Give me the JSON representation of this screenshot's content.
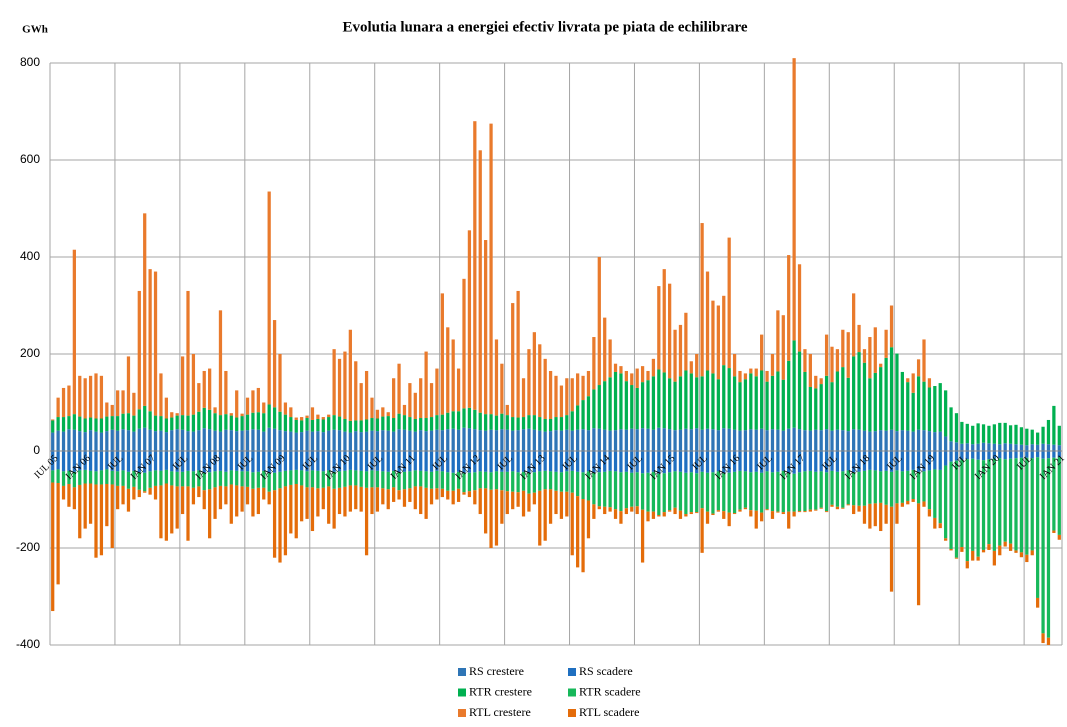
{
  "chart_data": {
    "type": "bar",
    "stacked": true,
    "title": "Evolutia lunara a energiei efectiv livrata pe piata de echilibrare",
    "y_label": "GWh",
    "ylim": [
      -400,
      800
    ],
    "yticks": [
      -400,
      -200,
      0,
      200,
      400,
      600,
      800
    ],
    "grid": true,
    "legend": "bottom",
    "categories": [
      "IUL 05",
      null,
      null,
      null,
      null,
      null,
      "IAN 06",
      null,
      null,
      null,
      null,
      null,
      "IUL",
      null,
      null,
      null,
      null,
      null,
      "IAN 07",
      null,
      null,
      null,
      null,
      null,
      "IUL",
      null,
      null,
      null,
      null,
      null,
      "IAN 08",
      null,
      null,
      null,
      null,
      null,
      "IUL",
      null,
      null,
      null,
      null,
      null,
      "IAN 09",
      null,
      null,
      null,
      null,
      null,
      "IUL",
      null,
      null,
      null,
      null,
      null,
      "IAN 10",
      null,
      null,
      null,
      null,
      null,
      "IUL",
      null,
      null,
      null,
      null,
      null,
      "IAN 11",
      null,
      null,
      null,
      null,
      null,
      "IUL",
      null,
      null,
      null,
      null,
      null,
      "IAN 12",
      null,
      null,
      null,
      null,
      null,
      "IUL",
      null,
      null,
      null,
      null,
      null,
      "IAN 13",
      null,
      null,
      null,
      null,
      null,
      "IUL",
      null,
      null,
      null,
      null,
      null,
      "IAN 14",
      null,
      null,
      null,
      null,
      null,
      "IUL",
      null,
      null,
      null,
      null,
      null,
      "IAN 15",
      null,
      null,
      null,
      null,
      null,
      "IUL",
      null,
      null,
      null,
      null,
      null,
      "IAN 16",
      null,
      null,
      null,
      null,
      null,
      "IUL",
      null,
      null,
      null,
      null,
      null,
      "IAN 17",
      null,
      null,
      null,
      null,
      null,
      "IUL",
      null,
      null,
      null,
      null,
      null,
      "IAN 18",
      null,
      null,
      null,
      null,
      null,
      "IUL",
      null,
      null,
      null,
      null,
      null,
      "IAN 19",
      null,
      null,
      null,
      null,
      null,
      "IUL",
      null,
      null,
      null,
      null,
      null,
      "IAN 20",
      null,
      null,
      null,
      null,
      null,
      "IUL",
      null,
      null,
      null,
      null,
      null,
      "IAN 21"
    ],
    "series": [
      {
        "name": "RS crestere",
        "color": "#2e75b6",
        "values": [
          38,
          42,
          40,
          45,
          44,
          41,
          39,
          43,
          40,
          38,
          41,
          44,
          42,
          45,
          43,
          40,
          46,
          48,
          44,
          41,
          42,
          39,
          43,
          45,
          44,
          41,
          40,
          43,
          47,
          45,
          42,
          40,
          44,
          43,
          41,
          42,
          43,
          45,
          44,
          40,
          48,
          46,
          43,
          41,
          40,
          38,
          39,
          42,
          40,
          41,
          39,
          42,
          44,
          43,
          40,
          38,
          41,
          39,
          40,
          42,
          41,
          43,
          42,
          40,
          45,
          44,
          42,
          40,
          43,
          41,
          42,
          44,
          43,
          45,
          46,
          44,
          48,
          47,
          45,
          43,
          42,
          44,
          43,
          45,
          44,
          42,
          43,
          45,
          46,
          44,
          42,
          40,
          41,
          43,
          42,
          44,
          42,
          44,
          45,
          43,
          47,
          46,
          44,
          42,
          43,
          45,
          44,
          46,
          45,
          47,
          46,
          44,
          48,
          47,
          45,
          43,
          44,
          46,
          45,
          47,
          44,
          46,
          45,
          43,
          47,
          46,
          44,
          42,
          43,
          45,
          44,
          46,
          43,
          45,
          44,
          42,
          46,
          48,
          45,
          43,
          42,
          44,
          43,
          45,
          42,
          44,
          43,
          41,
          45,
          44,
          42,
          40,
          41,
          43,
          42,
          44,
          41,
          43,
          42,
          40,
          44,
          43,
          41,
          39,
          40,
          30,
          20,
          18,
          15,
          16,
          14,
          15,
          17,
          16,
          15,
          14,
          16,
          15,
          14,
          13,
          12,
          14,
          13,
          15,
          14,
          13,
          12
        ]
      },
      {
        "name": "RS scadere",
        "color": "#1f6fc0",
        "values": [
          -40,
          -38,
          -42,
          -41,
          -43,
          -40,
          -39,
          -41,
          -42,
          -40,
          -38,
          -41,
          -42,
          -40,
          -43,
          -41,
          -44,
          -45,
          -42,
          -40,
          -41,
          -39,
          -42,
          -43,
          -43,
          -41,
          -42,
          -40,
          -45,
          -44,
          -42,
          -41,
          -43,
          -40,
          -41,
          -42,
          -42,
          -44,
          -43,
          -41,
          -46,
          -45,
          -43,
          -41,
          -40,
          -39,
          -40,
          -42,
          -40,
          -41,
          -42,
          -40,
          -43,
          -42,
          -41,
          -39,
          -40,
          -41,
          -42,
          -40,
          -41,
          -42,
          -43,
          -41,
          -44,
          -43,
          -42,
          -40,
          -41,
          -42,
          -43,
          -41,
          -42,
          -44,
          -45,
          -43,
          -46,
          -45,
          -44,
          -42,
          -43,
          -44,
          -42,
          -43,
          -43,
          -42,
          -44,
          -43,
          -45,
          -44,
          -42,
          -41,
          -42,
          -43,
          -44,
          -42,
          -41,
          -43,
          -44,
          -42,
          -45,
          -44,
          -43,
          -41,
          -42,
          -44,
          -43,
          -45,
          -44,
          -46,
          -45,
          -43,
          -47,
          -46,
          -44,
          -42,
          -43,
          -45,
          -44,
          -46,
          -43,
          -45,
          -44,
          -42,
          -46,
          -45,
          -43,
          -41,
          -42,
          -44,
          -43,
          -45,
          -42,
          -44,
          -43,
          -41,
          -45,
          -47,
          -44,
          -42,
          -41,
          -43,
          -42,
          -44,
          -41,
          -43,
          -42,
          -40,
          -44,
          -43,
          -41,
          -39,
          -40,
          -42,
          -41,
          -43,
          -40,
          -42,
          -41,
          -39,
          -43,
          -42,
          -40,
          -38,
          -39,
          -30,
          -22,
          -20,
          -18,
          -17,
          -16,
          -18,
          -19,
          -17,
          -16,
          -15,
          -17,
          -16,
          -15,
          -14,
          -14,
          -15,
          -13,
          -16,
          -15,
          -14,
          -13
        ]
      },
      {
        "name": "RTR crestere",
        "color": "#00b050",
        "values": [
          25,
          28,
          30,
          27,
          32,
          30,
          28,
          26,
          27,
          29,
          30,
          28,
          30,
          32,
          35,
          33,
          40,
          45,
          38,
          32,
          30,
          28,
          26,
          28,
          30,
          32,
          35,
          38,
          42,
          40,
          36,
          34,
          32,
          30,
          28,
          30,
          32,
          34,
          36,
          38,
          48,
          44,
          38,
          34,
          30,
          26,
          24,
          26,
          24,
          25,
          26,
          28,
          30,
          28,
          26,
          24,
          22,
          24,
          25,
          26,
          26,
          28,
          30,
          28,
          32,
          30,
          28,
          26,
          25,
          27,
          28,
          30,
          32,
          34,
          36,
          38,
          40,
          42,
          40,
          36,
          34,
          32,
          30,
          32,
          30,
          28,
          26,
          25,
          28,
          30,
          28,
          26,
          25,
          27,
          28,
          30,
          40,
          50,
          60,
          70,
          80,
          90,
          100,
          110,
          120,
          115,
          100,
          90,
          85,
          95,
          100,
          110,
          120,
          115,
          105,
          100,
          110,
          120,
          115,
          105,
          110,
          120,
          115,
          105,
          130,
          125,
          110,
          100,
          105,
          115,
          110,
          120,
          100,
          110,
          120,
          105,
          140,
          180,
          160,
          120,
          90,
          85,
          95,
          110,
          100,
          120,
          130,
          110,
          150,
          160,
          140,
          110,
          120,
          130,
          150,
          170,
          160,
          120,
          100,
          80,
          110,
          100,
          90,
          95,
          100,
          95,
          70,
          60,
          45,
          40,
          38,
          42,
          38,
          36,
          40,
          44,
          42,
          38,
          40,
          36,
          34,
          30,
          25,
          35,
          50,
          80,
          40
        ]
      },
      {
        "name": "RTR scadere",
        "color": "#17b85a",
        "values": [
          -25,
          -28,
          -30,
          -27,
          -32,
          -30,
          -28,
          -26,
          -27,
          -29,
          -30,
          -28,
          -30,
          -32,
          -35,
          -33,
          -36,
          -38,
          -34,
          -32,
          -30,
          -28,
          -29,
          -30,
          -30,
          -32,
          -34,
          -33,
          -36,
          -35,
          -33,
          -31,
          -30,
          -29,
          -30,
          -31,
          -32,
          -34,
          -33,
          -35,
          -38,
          -36,
          -34,
          -32,
          -30,
          -29,
          -31,
          -33,
          -35,
          -36,
          -34,
          -33,
          -35,
          -34,
          -33,
          -32,
          -31,
          -33,
          -34,
          -35,
          -34,
          -35,
          -36,
          -34,
          -37,
          -36,
          -35,
          -33,
          -32,
          -34,
          -35,
          -36,
          -36,
          -38,
          -37,
          -35,
          -39,
          -38,
          -37,
          -35,
          -34,
          -36,
          -37,
          -38,
          -40,
          -42,
          -41,
          -39,
          -43,
          -42,
          -40,
          -38,
          -37,
          -39,
          -40,
          -42,
          -45,
          -50,
          -55,
          -60,
          -65,
          -70,
          -72,
          -75,
          -78,
          -80,
          -75,
          -70,
          -70,
          -75,
          -80,
          -82,
          -85,
          -80,
          -78,
          -75,
          -80,
          -85,
          -82,
          -80,
          -75,
          -80,
          -85,
          -80,
          -78,
          -82,
          -85,
          -80,
          -75,
          -78,
          -80,
          -82,
          -78,
          -80,
          -82,
          -85,
          -80,
          -78,
          -80,
          -82,
          -80,
          -78,
          -75,
          -80,
          -70,
          -72,
          -75,
          -70,
          -68,
          -70,
          -72,
          -70,
          -68,
          -65,
          -70,
          -72,
          -68,
          -65,
          -62,
          -60,
          -65,
          -62,
          -80,
          -100,
          -110,
          -150,
          -180,
          -200,
          -180,
          -210,
          -190,
          -200,
          -185,
          -175,
          -190,
          -180,
          -170,
          -175,
          -190,
          -195,
          -200,
          -190,
          -290,
          -360,
          -370,
          -150,
          -160
        ]
      },
      {
        "name": "RTL crestere",
        "color": "#e97a2c",
        "values": [
          2,
          40,
          60,
          63,
          339,
          84,
          83,
          86,
          93,
          88,
          29,
          23,
          53,
          48,
          117,
          47,
          244,
          397,
          293,
          297,
          88,
          43,
          11,
          5,
          121,
          257,
          125,
          59,
          76,
          85,
          12,
          216,
          89,
          5,
          56,
          5,
          35,
          46,
          50,
          22,
          439,
          180,
          119,
          25,
          20,
          5,
          7,
          5,
          26,
          9,
          5,
          5,
          136,
          119,
          139,
          188,
          122,
          77,
          100,
          42,
          18,
          19,
          8,
          82,
          103,
          21,
          70,
          54,
          82,
          137,
          70,
          96,
          250,
          176,
          148,
          88,
          267,
          366,
          595,
          541,
          359,
          599,
          157,
          103,
          21,
          235,
          261,
          80,
          136,
          171,
          150,
          124,
          99,
          85,
          65,
          76,
          68,
          66,
          50,
          52,
          108,
          264,
          131,
          78,
          17,
          15,
          21,
          24,
          40,
          33,
          19,
          36,
          172,
          213,
          195,
          107,
          106,
          119,
          25,
          48,
          316,
          204,
          150,
          152,
          143,
          269,
          46,
          23,
          12,
          10,
          16,
          74,
          22,
          45,
          126,
          133,
          218,
          582,
          180,
          47,
          68,
          26,
          12,
          85,
          73,
          46,
          77,
          94,
          130,
          56,
          28,
          85,
          94,
          7,
          58,
          86,
          0,
          0,
          8,
          40,
          35,
          87,
          19,
          0,
          0,
          0,
          0,
          0,
          0,
          0,
          0,
          0,
          0,
          0,
          0,
          0,
          0,
          0,
          0,
          0,
          0,
          0,
          0,
          0,
          0,
          0,
          0
        ]
      },
      {
        "name": "RTL scadere",
        "color": "#e46c0a",
        "values": [
          -265,
          -209,
          -28,
          -47,
          -45,
          -110,
          -93,
          -83,
          -151,
          -146,
          -87,
          -131,
          -48,
          -38,
          -47,
          -26,
          -15,
          -3,
          -14,
          -28,
          -109,
          -118,
          -99,
          -87,
          -57,
          -112,
          -34,
          -22,
          -39,
          -101,
          -65,
          -48,
          -37,
          -81,
          -64,
          -52,
          -36,
          -57,
          -54,
          -24,
          -26,
          -139,
          -153,
          -142,
          -100,
          -112,
          -74,
          -65,
          -90,
          -58,
          -44,
          -77,
          -82,
          -54,
          -61,
          -54,
          -49,
          -51,
          -139,
          -55,
          -50,
          -33,
          -41,
          -30,
          -19,
          -36,
          -28,
          -47,
          -57,
          -64,
          -32,
          -23,
          -17,
          -18,
          -28,
          -27,
          -5,
          -12,
          -29,
          -53,
          -93,
          -120,
          -116,
          -69,
          -47,
          -36,
          -30,
          -53,
          -37,
          -24,
          -113,
          -106,
          -71,
          -48,
          -56,
          -51,
          -129,
          -147,
          -151,
          -78,
          -30,
          -6,
          -15,
          -9,
          -20,
          -26,
          -12,
          -10,
          -16,
          -109,
          -20,
          -15,
          -3,
          -9,
          -3,
          -13,
          -17,
          -5,
          -4,
          -2,
          -92,
          -25,
          -3,
          -3,
          -16,
          -28,
          -2,
          -4,
          -3,
          -13,
          -37,
          -18,
          -2,
          -16,
          -2,
          -4,
          -35,
          -10,
          -2,
          -2,
          -4,
          -2,
          -2,
          -2,
          -4,
          -5,
          -2,
          -2,
          -18,
          -12,
          -37,
          -51,
          -47,
          -58,
          -39,
          -175,
          -42,
          -8,
          -7,
          -6,
          -210,
          -11,
          -15,
          -22,
          -10,
          -5,
          -3,
          -2,
          -10,
          -15,
          -20,
          -8,
          -5,
          -12,
          -30,
          -20,
          -10,
          -15,
          -5,
          -10,
          -15,
          -10,
          -20,
          -20,
          -15,
          -5,
          -10
        ]
      }
    ]
  }
}
